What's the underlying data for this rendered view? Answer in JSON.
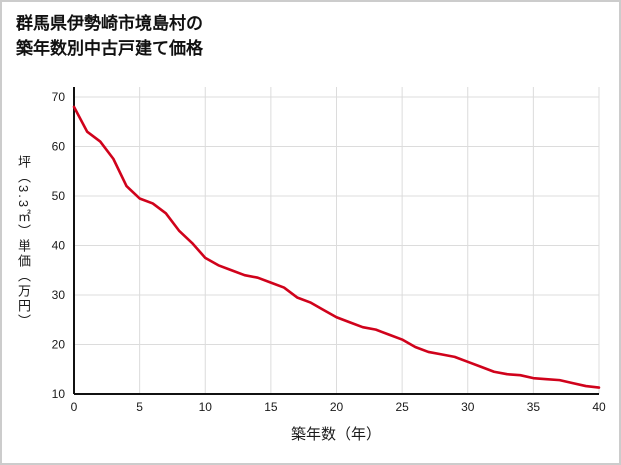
{
  "header": {
    "title_line1": "群馬県伊勢崎市境島村の",
    "title_line2": "築年数別中古戸建て価格"
  },
  "chart_data": {
    "type": "line",
    "title": "群馬県伊勢崎市境島村の築年数別中古戸建て価格",
    "xlabel": "築年数（年）",
    "ylabel": "坪（3.3㎡）単価（万円）",
    "x": [
      0,
      1,
      2,
      3,
      4,
      5,
      6,
      7,
      8,
      9,
      10,
      11,
      12,
      13,
      14,
      15,
      16,
      17,
      18,
      19,
      20,
      21,
      22,
      23,
      24,
      25,
      26,
      27,
      28,
      29,
      30,
      31,
      32,
      33,
      34,
      35,
      36,
      37,
      38,
      39,
      40
    ],
    "values": [
      68,
      63,
      61,
      57.5,
      52,
      49.5,
      48.5,
      46.5,
      43,
      40.5,
      37.5,
      36,
      35,
      34,
      33.5,
      32.5,
      31.5,
      29.5,
      28.5,
      27,
      25.5,
      24.5,
      23.5,
      23,
      22,
      21,
      19.5,
      18.5,
      18,
      17.5,
      16.5,
      15.5,
      14.5,
      14,
      13.8,
      13.2,
      13,
      12.8,
      12.2,
      11.6,
      11.3
    ],
    "xlim": [
      0,
      40
    ],
    "ylim": [
      10,
      70
    ],
    "x_ticks": [
      0,
      5,
      10,
      15,
      20,
      25,
      30,
      35,
      40
    ],
    "y_ticks": [
      10,
      20,
      30,
      40,
      50,
      60,
      70
    ],
    "grid": true,
    "legend": false,
    "line_color": "#d0021b",
    "colors": {
      "grid": "#dcdcdc",
      "axis": "#111111",
      "text": "#1a1a1a",
      "background": "#ffffff",
      "border": "#cccccc"
    }
  }
}
